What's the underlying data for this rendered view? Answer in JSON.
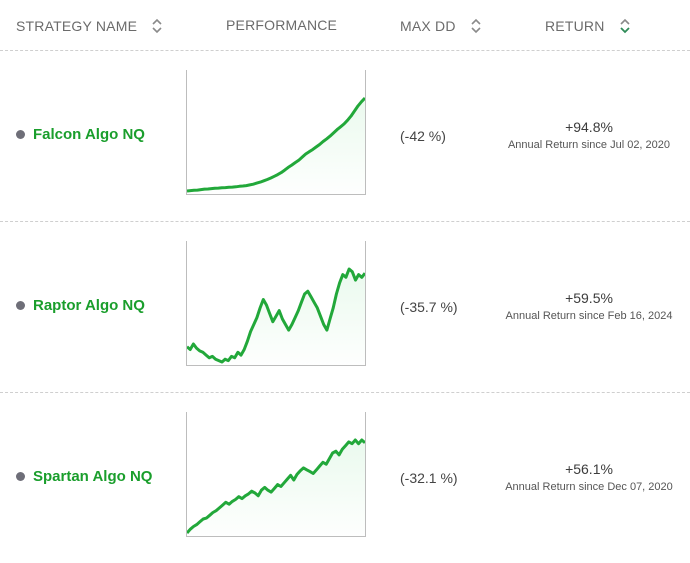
{
  "columns": {
    "strategy_name": "STRATEGY NAME",
    "performance": "PERFORMANCE",
    "max_dd": "MAX DD",
    "return": "RETURN"
  },
  "colors": {
    "accent": "#1a9e2c",
    "line": "#22a83a",
    "fill": "#e8f9ec",
    "dot": "#6e6e78",
    "active_sort": "#2e8b57"
  },
  "strategies": [
    {
      "name": "Falcon Algo NQ",
      "max_dd": "(-42 %)",
      "return_value": "+94.8%",
      "return_label": "Annual Return since Jul 02, 2020",
      "performance": [
        0,
        0.4,
        0.8,
        1,
        1.5,
        2,
        2.2,
        2.6,
        3,
        3.1,
        3.5,
        3.7,
        4,
        4.2,
        4.5,
        5,
        5.4,
        5.8,
        6.6,
        7.3,
        8.5,
        9.6,
        11,
        12.4,
        14,
        15.8,
        17.6,
        19.8,
        22.5,
        25.4,
        27.8,
        30.5,
        33,
        36.4,
        39.8,
        42.3,
        44.5,
        47.3,
        50,
        53.2,
        56,
        59,
        62.5,
        66,
        69,
        72.2,
        76,
        80.5,
        86,
        91.5,
        96,
        100
      ]
    },
    {
      "name": "Raptor Algo NQ",
      "max_dd": "(-35.7 %)",
      "return_value": "+59.5%",
      "return_label": "Annual Return since Feb 16, 2024",
      "performance": [
        44,
        42,
        46,
        43,
        41,
        40,
        38,
        36,
        37,
        35,
        34,
        33,
        35,
        34,
        37,
        36,
        40,
        38,
        42,
        48,
        55,
        60,
        65,
        72,
        78,
        74,
        68,
        62,
        66,
        70,
        64,
        60,
        56,
        60,
        65,
        70,
        76,
        82,
        84,
        80,
        76,
        72,
        66,
        60,
        56,
        64,
        72,
        82,
        90,
        96,
        94,
        100,
        98,
        92,
        96,
        94,
        97
      ]
    },
    {
      "name": "Spartan Algo NQ",
      "max_dd": "(-32.1 %)",
      "return_value": "+56.1%",
      "return_label": "Annual Return since Dec 07, 2020",
      "performance": [
        0,
        4,
        7,
        9,
        12,
        15,
        16,
        19,
        22,
        24,
        27,
        30,
        33,
        31,
        34,
        36,
        39,
        37,
        40,
        42,
        45,
        43,
        40,
        46,
        49,
        46,
        44,
        48,
        52,
        50,
        54,
        58,
        62,
        57,
        63,
        67,
        70,
        68,
        66,
        64,
        68,
        72,
        76,
        74,
        80,
        86,
        88,
        84,
        90,
        94,
        98,
        96,
        100,
        96,
        100,
        97
      ]
    }
  ]
}
